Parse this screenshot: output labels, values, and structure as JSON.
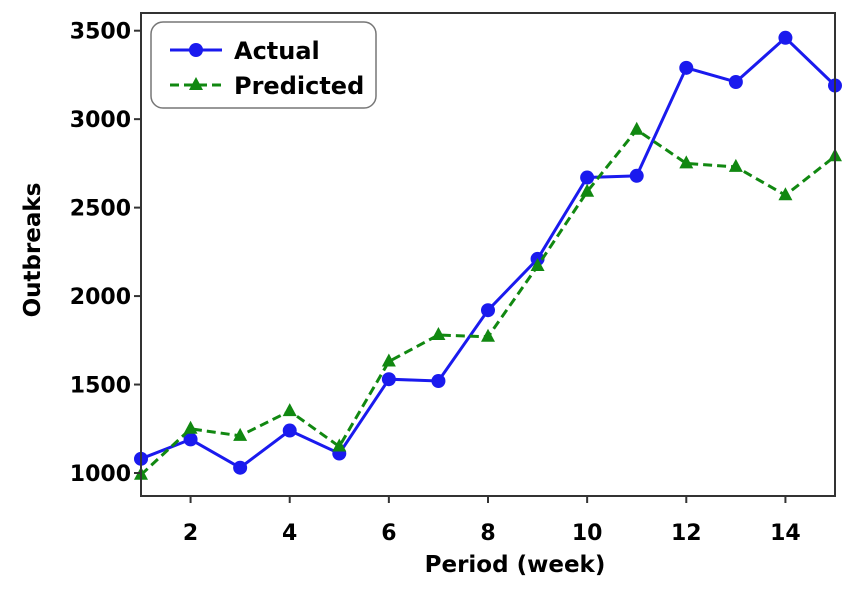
{
  "chart_data": {
    "type": "line",
    "title": "",
    "xlabel": "Period (week)",
    "ylabel": "Outbreaks",
    "xlim": [
      1,
      15
    ],
    "ylim": [
      870,
      3600
    ],
    "x_ticks": [
      2,
      4,
      6,
      8,
      10,
      12,
      14
    ],
    "y_ticks": [
      1000,
      1500,
      2000,
      2500,
      3000,
      3500
    ],
    "grid": false,
    "legend_position": "top-left",
    "x": [
      1,
      2,
      3,
      4,
      5,
      6,
      7,
      8,
      9,
      10,
      11,
      12,
      13,
      14,
      15
    ],
    "series": [
      {
        "name": "Actual",
        "color": "#1a1aee",
        "line_style": "solid",
        "marker": "circle",
        "values": [
          1080,
          1190,
          1030,
          1240,
          1110,
          1530,
          1520,
          1920,
          2210,
          2670,
          2680,
          3290,
          3210,
          3460,
          3190
        ]
      },
      {
        "name": "Predicted",
        "color": "#118811",
        "line_style": "dashed",
        "marker": "triangle",
        "values": [
          990,
          1250,
          1210,
          1350,
          1150,
          1630,
          1780,
          1770,
          2170,
          2590,
          2940,
          2750,
          2730,
          2570,
          2790
        ]
      }
    ]
  }
}
